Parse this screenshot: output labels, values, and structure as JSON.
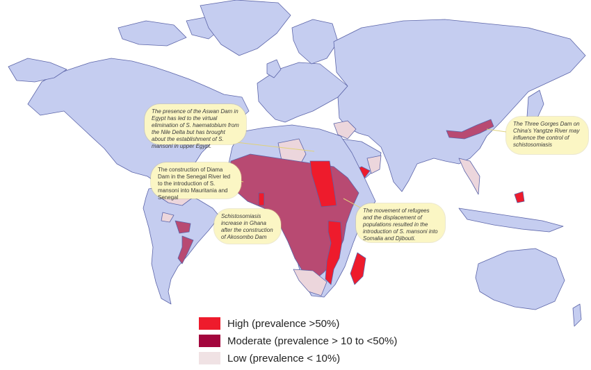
{
  "colors": {
    "ocean": "#ffffff",
    "land_no_data": "#c5cdf0",
    "border": "#5b64a8",
    "high": "#ee1b2c",
    "moderate": "#b84a72",
    "low": "#ecd6dc",
    "callout_bg": "#fbf6c4"
  },
  "callouts": {
    "aswan": "The presence of the Aswan Dam in Egypt has led to the virtual elimination of S. haematobium from the Nile Delta but has brought about the establishment of S. mansoni in upper Egypt.",
    "diama": "The construction of Diama Dam in the Senegal River led to the introduction of S. mansoni into Mauritania and Senegal",
    "ghana": "Schistosomiasis increase in Ghana after the construction of Akosombo Dam",
    "refugees": "The movement of refugees and the displacement of populations resulted in the introduction of S. mansoni into Somalia and Djibouti.",
    "three_gorges": "The Three Gorges Dam on China's Yangtze River may influence the control of schistosomiasis"
  },
  "legend": [
    {
      "label": "High (prevalence >50%)",
      "color": "#ee1b2c"
    },
    {
      "label": "Moderate (prevalence > 10 to <50%)",
      "color": "#a3063d"
    },
    {
      "label": "Low (prevalence < 10%)",
      "color": "#f0e2e4"
    }
  ]
}
